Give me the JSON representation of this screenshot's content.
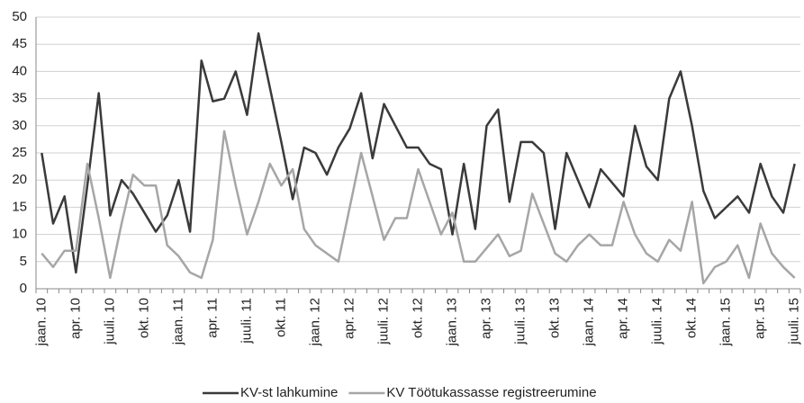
{
  "chart_data": {
    "type": "line",
    "categories": [
      "jaan. 10",
      null,
      null,
      "apr. 10",
      null,
      null,
      "juuli. 10",
      null,
      null,
      "okt. 10",
      null,
      null,
      "jaan. 11",
      null,
      null,
      "apr. 11",
      null,
      null,
      "juuli. 11",
      null,
      null,
      "okt. 11",
      null,
      null,
      "jaan. 12",
      null,
      null,
      "apr. 12",
      null,
      null,
      "juuli. 12",
      null,
      null,
      "okt. 12",
      null,
      null,
      "jaan. 13",
      null,
      null,
      "apr. 13",
      null,
      null,
      "juuli. 13",
      null,
      null,
      "okt. 13",
      null,
      null,
      "jaan. 14",
      null,
      null,
      "apr. 14",
      null,
      null,
      "juuli. 14",
      null,
      null,
      "okt. 14",
      null,
      null,
      "jaan. 15",
      null,
      null,
      "apr. 15",
      null,
      null,
      "juuli. 15"
    ],
    "series": [
      {
        "name": "KV-st lahkumine",
        "color": "#3a3a3a",
        "values": [
          25,
          12,
          17,
          3,
          19,
          36,
          13.5,
          20,
          17.5,
          14,
          10.5,
          13.5,
          20,
          10.5,
          42,
          34.5,
          35,
          40,
          32,
          47,
          37,
          27,
          16.5,
          26,
          25,
          21,
          26,
          29.5,
          36,
          24,
          34,
          30,
          26,
          26,
          23,
          22,
          10,
          23,
          11,
          30,
          33,
          16,
          27,
          27,
          25,
          11,
          25,
          20,
          15,
          22,
          19.5,
          17,
          30,
          22.5,
          20,
          35,
          40,
          30,
          18,
          13,
          15,
          17,
          14,
          23,
          17,
          14,
          23
        ]
      },
      {
        "name": "KV Töötukassasse registreerumine",
        "color": "#a6a6a6",
        "values": [
          6.5,
          4,
          7,
          7,
          23,
          13,
          2,
          12,
          21,
          19,
          19,
          8,
          6,
          3,
          2,
          9,
          29,
          19,
          10,
          16,
          23,
          19,
          22,
          11,
          8,
          6.5,
          5,
          15,
          25,
          17,
          9,
          13,
          13,
          22,
          16,
          10,
          14,
          5,
          5,
          7.5,
          10,
          6,
          7,
          17.5,
          12,
          6.5,
          5,
          8,
          10,
          8,
          8,
          16,
          10,
          6.5,
          5,
          9,
          7,
          16,
          1,
          4,
          5,
          8,
          2,
          12,
          6.5,
          4,
          2
        ]
      }
    ],
    "ylim": [
      0,
      50
    ],
    "yticks": [
      0,
      5,
      10,
      15,
      20,
      25,
      30,
      35,
      40,
      45,
      50
    ],
    "grid": true
  }
}
